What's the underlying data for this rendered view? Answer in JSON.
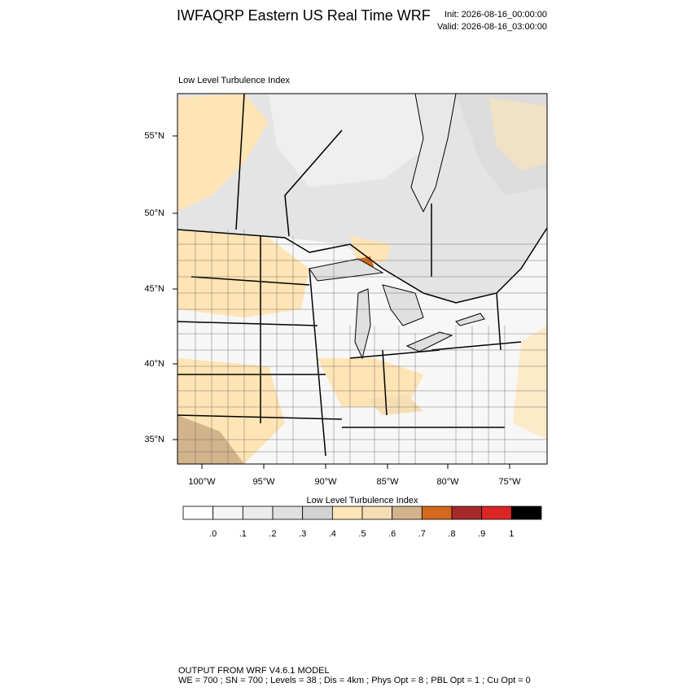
{
  "header": {
    "title": "IWFAQRP Eastern US Real Time WRF",
    "init": "Init: 2026-08-16_00:00:00",
    "valid": "Valid: 2026-08-16_03:00:00"
  },
  "map": {
    "title": "Low Level Turbulence Index",
    "lat_labels": [
      "55°N",
      "50°N",
      "45°N",
      "40°N",
      "35°N"
    ],
    "lon_labels": [
      "100°W",
      "95°W",
      "90°W",
      "85°W",
      "80°W",
      "75°W"
    ]
  },
  "colorbar": {
    "title": "Low Level Turbulence Index",
    "colors": [
      "#ffffff",
      "#f5f5f5",
      "#ececec",
      "#e0e0e0",
      "#d3d3d3",
      "#ffe4b5",
      "#f5deb3",
      "#d2b48c",
      "#d2691e",
      "#a52a2a",
      "#dc2626",
      "#000000"
    ],
    "labels": [
      ".0",
      ".1",
      ".2",
      ".3",
      ".4",
      ".5",
      ".6",
      ".7",
      ".8",
      ".9",
      "1"
    ]
  },
  "footer": {
    "line1": "OUTPUT FROM WRF V4.6.1 MODEL",
    "line2": "WE = 700 ; SN = 700 ; Levels = 38 ; Dis = 4km ; Phys Opt = 8 ; PBL Opt = 1 ; Cu Opt = 0"
  }
}
